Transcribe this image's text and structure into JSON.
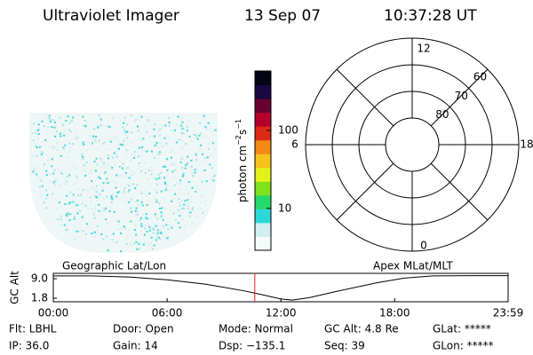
{
  "header": {
    "instrument": "Ultraviolet Imager",
    "date": "13 Sep 07",
    "time": "10:37:28 UT"
  },
  "colorbar": {
    "colors": [
      "#f4fbfb",
      "#cfeff0",
      "#2fd8d8",
      "#27d86a",
      "#7fe21b",
      "#e3f21a",
      "#f6c21c",
      "#f18a14",
      "#dc2a15",
      "#b2002a",
      "#6a0030",
      "#1a0844",
      "#050414"
    ],
    "log": true,
    "clim": [
      2.9,
      577
    ],
    "ticks": [
      10,
      100
    ],
    "unit": {
      "base": "photon cm",
      "exp1": "−2",
      "mid": "s",
      "exp2": "−1"
    }
  },
  "polar": {
    "rlim": [
      90,
      50
    ],
    "lat_ticks": [
      80,
      70,
      60
    ],
    "mlt_ticks": [
      12,
      18,
      0,
      6
    ]
  },
  "altitude": {
    "left_label": "Geographic Lat/Lon",
    "right_label": "Apex MLat/MLT",
    "axis_label": "GC Alt",
    "ylim": [
      0.49,
      10.96
    ],
    "yticks": [
      {
        "value": 9,
        "label": "9.0"
      },
      1.8
    ],
    "xlim": [
      0,
      23.983
    ],
    "xticks": [
      {
        "value": 0,
        "label": "00:00"
      },
      {
        "value": 6,
        "label": "06:00"
      },
      {
        "value": 12,
        "label": "12:00"
      },
      {
        "value": 18,
        "label": "18:00"
      },
      {
        "value": 23.983,
        "label": "23:59"
      }
    ],
    "x": [
      0,
      2,
      4,
      6,
      8,
      10,
      11,
      12,
      12.6,
      13.5,
      15,
      17,
      18.5,
      20,
      22,
      23.98
    ],
    "values": [
      10,
      10,
      9.6,
      8.6,
      7,
      4.6,
      3.1,
      1.5,
      1.1,
      2,
      4.4,
      7.4,
      9.2,
      10,
      10.1,
      10.1
    ],
    "marker": 10.624,
    "marker_color": "#d82020"
  },
  "footer": {
    "rows": [
      [
        "Flt: LBHL",
        "Door: Open",
        "Mode: Normal",
        "GC Alt: 4.8 Re",
        "GLat: *****"
      ],
      [
        "IP: 36.0",
        "Gain: 14",
        "Dsp: −135.1",
        "Seq: 39",
        "GLon: *****"
      ]
    ]
  }
}
